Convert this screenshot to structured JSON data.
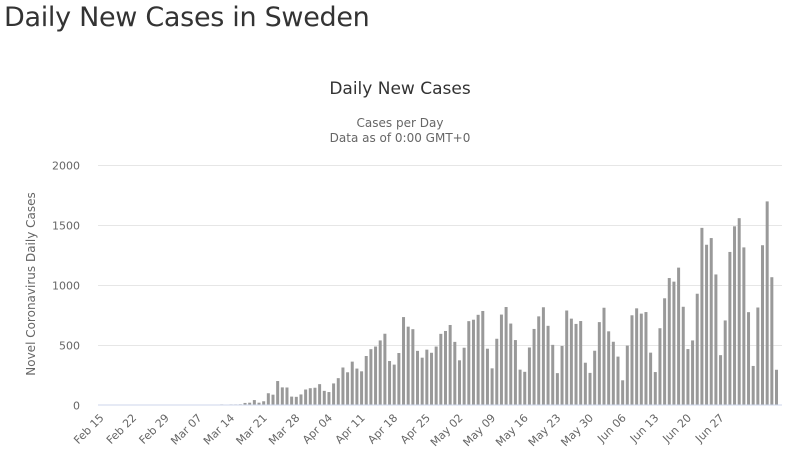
{
  "page": {
    "title": "Daily New Cases in Sweden"
  },
  "chart_data": {
    "type": "bar",
    "title": "Daily New Cases",
    "subtitle": [
      "Cases per Day",
      "Data as of 0:00 GMT+0"
    ],
    "xlabel": "",
    "ylabel": "Novel Coronavirus Daily Cases",
    "ylim": [
      0,
      2000
    ],
    "yticks": [
      0,
      500,
      1000,
      1500,
      2000
    ],
    "grid": true,
    "legend": "none",
    "bar_color": "#999999",
    "x_start": "Feb 15",
    "x_end": "Jun 27",
    "xtick_labels": [
      "Feb 15",
      "Feb 22",
      "Feb 29",
      "Mar 07",
      "Mar 14",
      "Mar 21",
      "Mar 28",
      "Apr 04",
      "Apr 11",
      "Apr 18",
      "Apr 25",
      "May 02",
      "May 09",
      "May 16",
      "May 23",
      "May 30",
      "Jun 06",
      "Jun 13",
      "Jun 20",
      "Jun 27"
    ],
    "values": [
      0,
      0,
      0,
      0,
      0,
      0,
      0,
      0,
      0,
      0,
      0,
      0,
      0,
      0,
      0,
      0,
      0,
      0,
      0,
      0,
      0,
      0,
      0,
      0,
      0,
      0,
      1,
      0,
      1,
      1,
      2,
      13,
      15,
      37,
      15,
      27,
      94,
      82,
      196,
      143,
      142,
      66,
      64,
      84,
      125,
      136,
      140,
      170,
      114,
      104,
      176,
      220,
      309,
      269,
      358,
      300,
      277,
      405,
      462,
      484,
      535,
      591,
      363,
      333,
      430,
      730,
      650,
      629,
      448,
      391,
      458,
      432,
      484,
      590,
      614,
      664,
      523,
      369,
      474,
      696,
      708,
      749,
      781,
      466,
      302,
      549,
      751,
      814,
      676,
      538,
      291,
      273,
      476,
      631,
      736,
      812,
      657,
      498,
      262,
      489,
      785,
      717,
      673,
      697,
      349,
      264,
      449,
      688,
      808,
      611,
      524,
      400,
      202,
      492,
      745,
      803,
      759,
      772,
      433,
      271,
      637,
      887,
      1056,
      1026,
      1143,
      816,
      463,
      535,
      925,
      1475,
      1334,
      1390,
      1086,
      412,
      702,
      1274,
      1488,
      1556,
      1312,
      771,
      322,
      810,
      1330,
      1696,
      1063,
      290
    ],
    "dates": "daily, Feb 15 .. Jun 27"
  }
}
